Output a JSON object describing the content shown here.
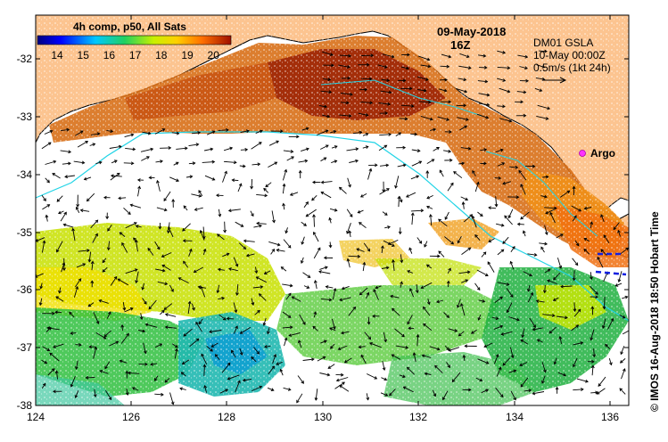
{
  "legend": {
    "title": "4h comp, p50, All Sats",
    "ticks": [
      "14",
      "15",
      "16",
      "17",
      "18",
      "19",
      "20"
    ]
  },
  "header": {
    "date": "09-May-2018",
    "time": "16Z"
  },
  "current_info": {
    "line1": "DM01 GSLA",
    "line2": "10-May 00:00Z",
    "line3": "0.5m/s (1kt 24h)"
  },
  "argo_label": "Argo",
  "credit": "© IMOS 16-Aug-2018 18:50 Hobart Time",
  "axes": {
    "x_ticks": [
      "124",
      "126",
      "128",
      "130",
      "132",
      "134",
      "136"
    ],
    "y_ticks": [
      "-32",
      "-33",
      "-34",
      "-35",
      "-36",
      "-37",
      "-38"
    ]
  },
  "colors": {
    "land": "#fcc490",
    "coast": "#000000",
    "isobath": "#22d4e6",
    "argo": "#ff33ff"
  }
}
